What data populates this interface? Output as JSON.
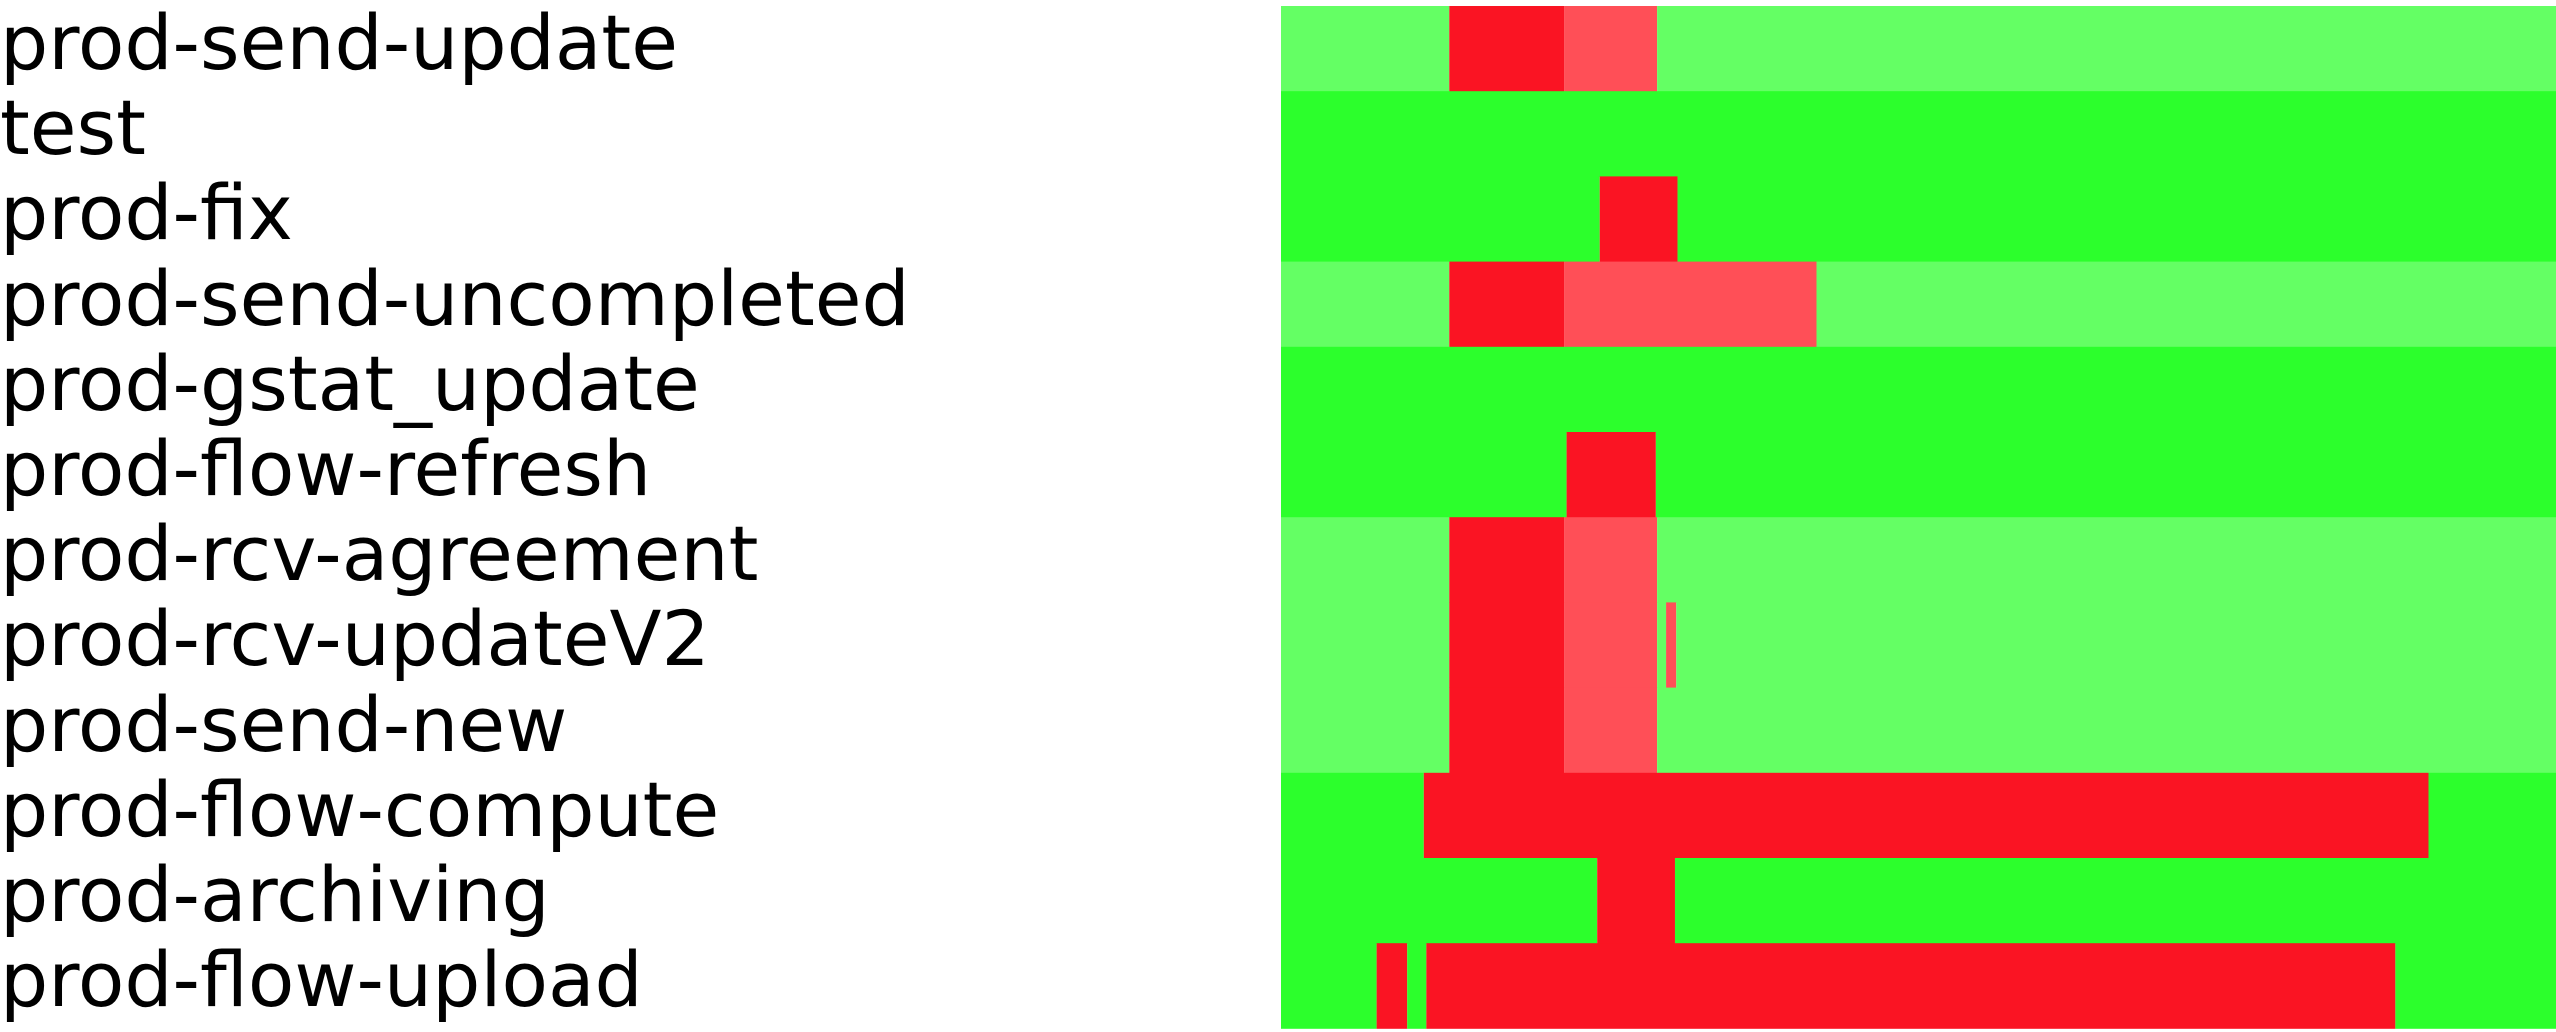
{
  "chart_data": {
    "type": "heatmap",
    "title": "",
    "xlabel": "",
    "ylabel": "",
    "x_range": [
      0,
      1
    ],
    "states": {
      "ok": "#2cff2c",
      "ok_light": "#64ff64",
      "fail": "#fa1423",
      "fail_light": "#ff4f57"
    },
    "rows": [
      {
        "label": "prod-send-update",
        "base": "ok_light",
        "segments": [
          {
            "start": 0.0,
            "end": 0.132,
            "state": "ok_light"
          },
          {
            "start": 0.132,
            "end": 0.222,
            "state": "fail"
          },
          {
            "start": 0.222,
            "end": 0.295,
            "state": "fail_light"
          },
          {
            "start": 0.295,
            "end": 1.0,
            "state": "ok_light"
          }
        ]
      },
      {
        "label": "test",
        "base": "ok",
        "segments": [
          {
            "start": 0.0,
            "end": 1.0,
            "state": "ok"
          }
        ]
      },
      {
        "label": "prod-fix",
        "base": "ok",
        "segments": [
          {
            "start": 0.0,
            "end": 0.25,
            "state": "ok"
          },
          {
            "start": 0.25,
            "end": 0.311,
            "state": "fail"
          },
          {
            "start": 0.311,
            "end": 1.0,
            "state": "ok"
          }
        ]
      },
      {
        "label": "prod-send-uncompleted",
        "base": "ok_light",
        "segments": [
          {
            "start": 0.0,
            "end": 0.132,
            "state": "ok_light"
          },
          {
            "start": 0.132,
            "end": 0.222,
            "state": "fail"
          },
          {
            "start": 0.222,
            "end": 0.42,
            "state": "fail_light"
          },
          {
            "start": 0.42,
            "end": 1.0,
            "state": "ok_light"
          }
        ]
      },
      {
        "label": "prod-gstat_update",
        "base": "ok",
        "segments": [
          {
            "start": 0.0,
            "end": 1.0,
            "state": "ok"
          }
        ]
      },
      {
        "label": "prod-flow-refresh",
        "base": "ok",
        "segments": [
          {
            "start": 0.0,
            "end": 0.224,
            "state": "ok"
          },
          {
            "start": 0.224,
            "end": 0.294,
            "state": "fail"
          },
          {
            "start": 0.294,
            "end": 1.0,
            "state": "ok"
          }
        ]
      },
      {
        "label": "prod-rcv-agreement",
        "base": "ok_light",
        "segments": [
          {
            "start": 0.0,
            "end": 0.132,
            "state": "ok_light"
          },
          {
            "start": 0.132,
            "end": 0.222,
            "state": "fail"
          },
          {
            "start": 0.222,
            "end": 0.295,
            "state": "fail_light"
          },
          {
            "start": 0.295,
            "end": 1.0,
            "state": "ok_light"
          }
        ]
      },
      {
        "label": "prod-rcv-updateV2",
        "base": "ok_light",
        "segments": [
          {
            "start": 0.0,
            "end": 0.132,
            "state": "ok_light"
          },
          {
            "start": 0.132,
            "end": 0.222,
            "state": "fail"
          },
          {
            "start": 0.222,
            "end": 0.295,
            "state": "fail_light"
          },
          {
            "start": 0.302,
            "end": 0.31,
            "state": "fail_light"
          },
          {
            "start": 0.295,
            "end": 0.302,
            "state": "ok_light"
          },
          {
            "start": 0.31,
            "end": 1.0,
            "state": "ok_light"
          }
        ]
      },
      {
        "label": "prod-send-new",
        "base": "ok_light",
        "segments": [
          {
            "start": 0.0,
            "end": 0.132,
            "state": "ok_light"
          },
          {
            "start": 0.132,
            "end": 0.222,
            "state": "fail"
          },
          {
            "start": 0.222,
            "end": 0.295,
            "state": "fail_light"
          },
          {
            "start": 0.295,
            "end": 1.0,
            "state": "ok_light"
          }
        ]
      },
      {
        "label": "prod-flow-compute",
        "base": "ok",
        "segments": [
          {
            "start": 0.0,
            "end": 0.112,
            "state": "ok"
          },
          {
            "start": 0.112,
            "end": 0.9,
            "state": "fail"
          },
          {
            "start": 0.9,
            "end": 1.0,
            "state": "ok"
          }
        ]
      },
      {
        "label": "prod-archiving",
        "base": "ok",
        "segments": [
          {
            "start": 0.0,
            "end": 0.248,
            "state": "ok"
          },
          {
            "start": 0.248,
            "end": 0.309,
            "state": "fail"
          },
          {
            "start": 0.309,
            "end": 1.0,
            "state": "ok"
          }
        ]
      },
      {
        "label": "prod-flow-upload",
        "base": "ok",
        "segments": [
          {
            "start": 0.0,
            "end": 0.075,
            "state": "ok"
          },
          {
            "start": 0.075,
            "end": 0.099,
            "state": "fail"
          },
          {
            "start": 0.099,
            "end": 0.114,
            "state": "ok"
          },
          {
            "start": 0.114,
            "end": 0.874,
            "state": "fail"
          },
          {
            "start": 0.874,
            "end": 1.0,
            "state": "ok"
          }
        ]
      }
    ]
  }
}
